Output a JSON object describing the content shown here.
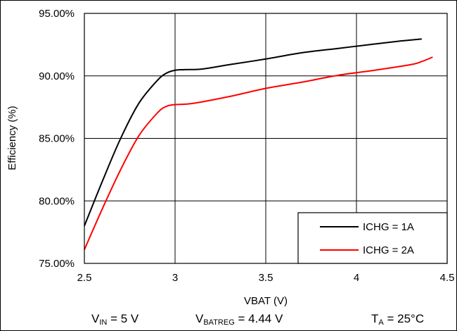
{
  "chart_data": {
    "type": "line",
    "xlabel": "VBAT (V)",
    "ylabel": "Efficiency (%)",
    "xlim": [
      2.5,
      4.5
    ],
    "ylim": [
      75,
      95
    ],
    "x_ticks": [
      2.5,
      3,
      3.5,
      4,
      4.5
    ],
    "x_tick_labels": [
      "2.5",
      "3",
      "3.5",
      "4",
      "4.5"
    ],
    "y_ticks": [
      75,
      80,
      85,
      90,
      95
    ],
    "y_tick_labels": [
      "75.00%",
      "80.00%",
      "85.00%",
      "90.00%",
      "95.00%"
    ],
    "grid": true,
    "legend_position": "bottom-right",
    "series": [
      {
        "name": "ICHG = 1A",
        "color": "#000000",
        "points": [
          [
            2.5,
            78.0
          ],
          [
            2.6,
            81.6
          ],
          [
            2.7,
            85.0
          ],
          [
            2.8,
            87.8
          ],
          [
            2.9,
            89.6
          ],
          [
            2.95,
            90.2
          ],
          [
            3.0,
            90.45
          ],
          [
            3.05,
            90.5
          ],
          [
            3.15,
            90.55
          ],
          [
            3.3,
            90.9
          ],
          [
            3.5,
            91.35
          ],
          [
            3.7,
            91.85
          ],
          [
            3.9,
            92.2
          ],
          [
            4.1,
            92.55
          ],
          [
            4.25,
            92.8
          ],
          [
            4.36,
            92.95
          ]
        ]
      },
      {
        "name": "ICHG = 2A",
        "color": "#ff0000",
        "points": [
          [
            2.5,
            76.1
          ],
          [
            2.6,
            79.4
          ],
          [
            2.7,
            82.5
          ],
          [
            2.8,
            85.2
          ],
          [
            2.9,
            87.0
          ],
          [
            2.95,
            87.55
          ],
          [
            3.0,
            87.7
          ],
          [
            3.1,
            87.8
          ],
          [
            3.3,
            88.35
          ],
          [
            3.5,
            89.0
          ],
          [
            3.7,
            89.5
          ],
          [
            3.9,
            90.05
          ],
          [
            4.1,
            90.45
          ],
          [
            4.3,
            90.9
          ],
          [
            4.36,
            91.15
          ],
          [
            4.42,
            91.5
          ]
        ]
      }
    ]
  },
  "conditions": {
    "vin_main": "V",
    "vin_sub": "IN",
    "vin_value": " = 5 V",
    "vbatreg_main": "V",
    "vbatreg_sub": "BATREG",
    "vbatreg_value": " = 4.44 V",
    "ta_main": "T",
    "ta_sub": "A",
    "ta_value": " = 25°C"
  }
}
